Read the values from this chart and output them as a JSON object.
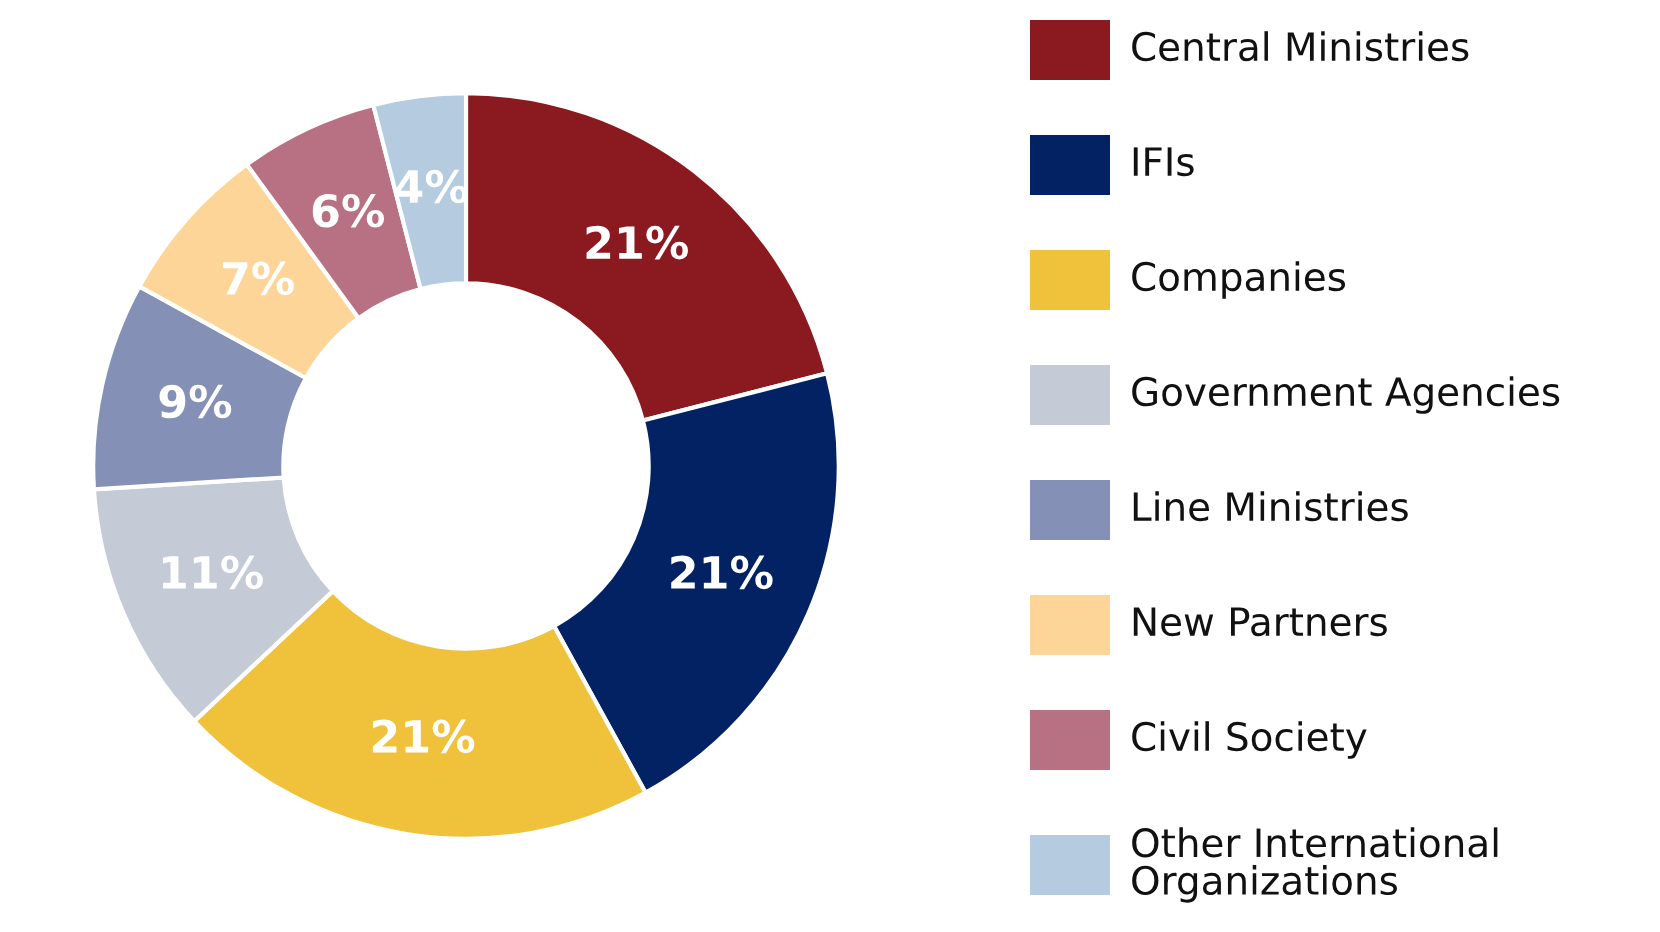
{
  "chart_data": {
    "type": "donut",
    "categories": [
      "Central Ministries",
      "IFIs",
      "Companies",
      "Government Agencies",
      "Line Ministries",
      "New Partners",
      "Civil Society",
      "Other International Organizations"
    ],
    "values": [
      21,
      21,
      21,
      11,
      9,
      7,
      6,
      4
    ],
    "colors": [
      "#8b1a20",
      "#022264",
      "#f0c23c",
      "#c5cad7",
      "#8490b5",
      "#fed598",
      "#b87083",
      "#b4cbe0"
    ],
    "value_labels": [
      "21%",
      "21%",
      "21%",
      "11%",
      "9%",
      "7%",
      "6%",
      "4%"
    ],
    "legend": "right"
  }
}
